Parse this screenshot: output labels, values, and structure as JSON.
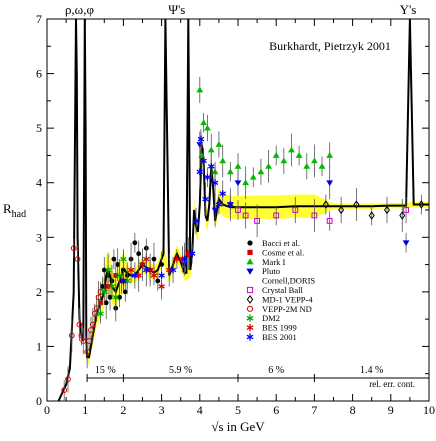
{
  "chart_data": {
    "type": "scatter",
    "title": "Burkhardt, Pietrzyk 2001",
    "xlabel": "√s in GeV",
    "ylabel": "R",
    "ylabel_sub": "had",
    "xlim": [
      0,
      10
    ],
    "ylim": [
      0,
      7
    ],
    "x_ticks": [
      0,
      1,
      2,
      3,
      4,
      5,
      6,
      7,
      8,
      9,
      10
    ],
    "y_ticks": [
      0,
      1,
      2,
      3,
      4,
      5,
      6,
      7
    ],
    "grid": false,
    "legend_position": "center-right",
    "resonance_labels": [
      {
        "text": "ρ,ω,φ",
        "x": 0.85
      },
      {
        "text": "Ψ's",
        "x": 3.4
      },
      {
        "text": "Υ's",
        "x": 9.45
      }
    ],
    "error_band": {
      "label": "rel. err. cont.",
      "segments": [
        {
          "label": "15 %",
          "x_from": 1.05,
          "x_to": 2.0
        },
        {
          "label": "5.9 %",
          "x_from": 2.0,
          "x_to": 5.0
        },
        {
          "label": "6 %",
          "x_from": 5.0,
          "x_to": 7.0
        },
        {
          "label": "1.4 %",
          "x_from": 7.0,
          "x_to": 10.0
        }
      ]
    },
    "theory_curve": {
      "name": "",
      "x": [
        0.3,
        0.5,
        0.6,
        0.7,
        0.74,
        0.76,
        0.78,
        0.8,
        0.85,
        0.9,
        0.95,
        0.99,
        1.01,
        1.03,
        1.05,
        1.1,
        1.2,
        1.3,
        1.4,
        1.5,
        1.55,
        1.6,
        1.65,
        1.7,
        1.8,
        1.9,
        2.0,
        2.1,
        2.2,
        2.3,
        2.4,
        2.5,
        2.6,
        2.7,
        2.8,
        2.9,
        3.0,
        3.05,
        3.1,
        3.2,
        3.3,
        3.4,
        3.5,
        3.6,
        3.65,
        3.7,
        3.75,
        3.8,
        3.85,
        3.9,
        3.95,
        4.0,
        4.05,
        4.1,
        4.15,
        4.2,
        4.25,
        4.3,
        4.35,
        4.4,
        4.5,
        4.6,
        4.8,
        5.0,
        5.5,
        6.0,
        6.5,
        7.0,
        7.5,
        8.0,
        8.5,
        9.0,
        9.4,
        9.5,
        9.6,
        10.0
      ],
      "y": [
        0.0,
        0.3,
        0.6,
        2.0,
        5.5,
        7.0,
        6.0,
        3.0,
        1.5,
        1.2,
        1.1,
        7.0,
        5.0,
        1.2,
        0.8,
        0.8,
        1.2,
        1.6,
        1.8,
        2.0,
        2.3,
        2.4,
        2.3,
        2.1,
        2.0,
        2.2,
        2.4,
        2.35,
        2.3,
        2.3,
        2.4,
        2.5,
        2.45,
        2.4,
        2.35,
        2.4,
        2.6,
        2.7,
        7.0,
        2.3,
        2.5,
        2.7,
        2.55,
        2.35,
        2.35,
        7.0,
        2.4,
        2.7,
        3.5,
        3.2,
        3.1,
        3.6,
        4.7,
        4.4,
        3.4,
        3.3,
        3.6,
        4.3,
        3.9,
        3.3,
        3.7,
        3.6,
        3.55,
        3.55,
        3.55,
        3.55,
        3.57,
        3.57,
        3.57,
        3.57,
        3.57,
        3.58,
        3.58,
        7.0,
        3.6,
        3.6
      ]
    },
    "series": [
      {
        "name": "Bacci et al.",
        "marker": "circle-filled",
        "color": "#000000",
        "x": [
          1.45,
          1.5,
          1.55,
          1.6,
          1.65,
          1.7,
          1.75,
          1.8,
          1.85,
          1.9,
          1.95,
          2.0,
          2.05,
          2.1,
          2.2,
          2.3,
          2.4,
          2.5,
          2.6,
          2.7,
          2.8,
          2.9,
          3.0
        ],
        "y": [
          2.1,
          2.4,
          1.8,
          2.3,
          1.9,
          2.2,
          2.6,
          1.7,
          2.5,
          1.9,
          2.2,
          2.4,
          2.0,
          2.3,
          2.6,
          2.9,
          2.7,
          2.5,
          2.8,
          2.4,
          2.6,
          2.2,
          2.5
        ]
      },
      {
        "name": "Cosme et al.",
        "marker": "square-filled",
        "color": "#dd0000",
        "x": [
          1.4,
          1.6,
          1.8,
          2.0
        ],
        "y": [
          1.8,
          2.1,
          2.3,
          2.2
        ]
      },
      {
        "name": "Mark I",
        "marker": "triangle-up-filled",
        "color": "#00bb00",
        "x": [
          3.6,
          4.0,
          4.05,
          4.1,
          4.2,
          4.3,
          4.4,
          4.5,
          4.6,
          4.8,
          5.0,
          5.2,
          5.4,
          5.6,
          5.8,
          6.0,
          6.2,
          6.4,
          6.6,
          6.8,
          7.0,
          7.2,
          7.4
        ],
        "y": [
          2.6,
          5.7,
          4.5,
          5.1,
          5.0,
          4.6,
          4.2,
          4.7,
          4.4,
          4.2,
          4.3,
          4.0,
          4.1,
          4.2,
          4.3,
          4.5,
          4.4,
          4.6,
          4.5,
          4.3,
          4.4,
          4.3,
          4.5
        ]
      },
      {
        "name": "Pluto",
        "marker": "triangle-down-filled",
        "color": "#0000dd",
        "x": [
          3.6,
          4.0,
          4.4,
          4.8,
          5.0,
          7.4,
          9.4
        ],
        "y": [
          2.5,
          4.7,
          3.5,
          3.6,
          4.0,
          4.0,
          2.9
        ]
      },
      {
        "name": "Cornell,DORIS",
        "marker": "none",
        "color": "#000000",
        "x": [],
        "y": []
      },
      {
        "name": "Crystal Ball",
        "marker": "square-open",
        "color": "#cc00cc",
        "x": [
          5.0,
          5.2,
          5.5,
          6.0,
          6.5,
          7.0,
          7.4,
          9.4
        ],
        "y": [
          3.5,
          3.4,
          3.3,
          3.4,
          3.5,
          3.4,
          3.3,
          3.5
        ]
      },
      {
        "name": "MD-1 VEPP-4",
        "marker": "diamond-open",
        "color": "#000000",
        "x": [
          7.3,
          7.7,
          8.1,
          8.5,
          8.9,
          9.3,
          9.8
        ],
        "y": [
          3.6,
          3.5,
          3.6,
          3.4,
          3.5,
          3.4,
          3.6
        ]
      },
      {
        "name": "VEPP-2M ND",
        "marker": "circle-open",
        "color": "#dd0000",
        "x": [
          0.45,
          0.55,
          0.65,
          0.7,
          0.8,
          0.85,
          0.9,
          0.95,
          1.05,
          1.1,
          1.15,
          1.2,
          1.25,
          1.3,
          1.35,
          1.4
        ],
        "y": [
          0.2,
          0.4,
          1.2,
          2.8,
          2.6,
          1.4,
          1.2,
          1.1,
          0.9,
          1.1,
          1.3,
          1.4,
          1.6,
          1.7,
          1.9,
          2.0
        ]
      },
      {
        "name": "DM2",
        "marker": "star",
        "color": "#00aa00",
        "x": [
          1.4,
          1.5,
          1.6,
          1.7,
          1.8,
          1.9,
          2.0,
          2.1
        ],
        "y": [
          1.6,
          2.0,
          2.4,
          2.1,
          1.9,
          2.3,
          2.6,
          2.2
        ]
      },
      {
        "name": "BES 1999",
        "marker": "asterisk",
        "color": "#dd0000",
        "x": [
          2.0,
          2.2,
          2.4,
          2.5,
          2.6,
          2.7,
          2.8,
          3.0,
          3.2,
          3.4,
          3.55,
          3.7
        ],
        "y": [
          2.2,
          2.4,
          2.3,
          2.5,
          2.6,
          2.4,
          2.3,
          2.1,
          2.4,
          2.6,
          2.6,
          2.7
        ]
      },
      {
        "name": "BES 2001",
        "marker": "asterisk",
        "color": "#0000ff",
        "x": [
          2.0,
          2.3,
          2.6,
          3.0,
          3.3,
          3.6,
          3.8,
          3.9,
          4.0,
          4.03,
          4.1,
          4.15,
          4.2,
          4.3,
          4.4,
          4.5,
          4.6,
          4.8
        ],
        "y": [
          2.2,
          2.3,
          2.4,
          2.3,
          2.4,
          2.6,
          2.7,
          3.3,
          4.2,
          4.8,
          4.4,
          3.7,
          4.1,
          4.3,
          4.0,
          3.6,
          3.8,
          3.6
        ]
      }
    ]
  }
}
